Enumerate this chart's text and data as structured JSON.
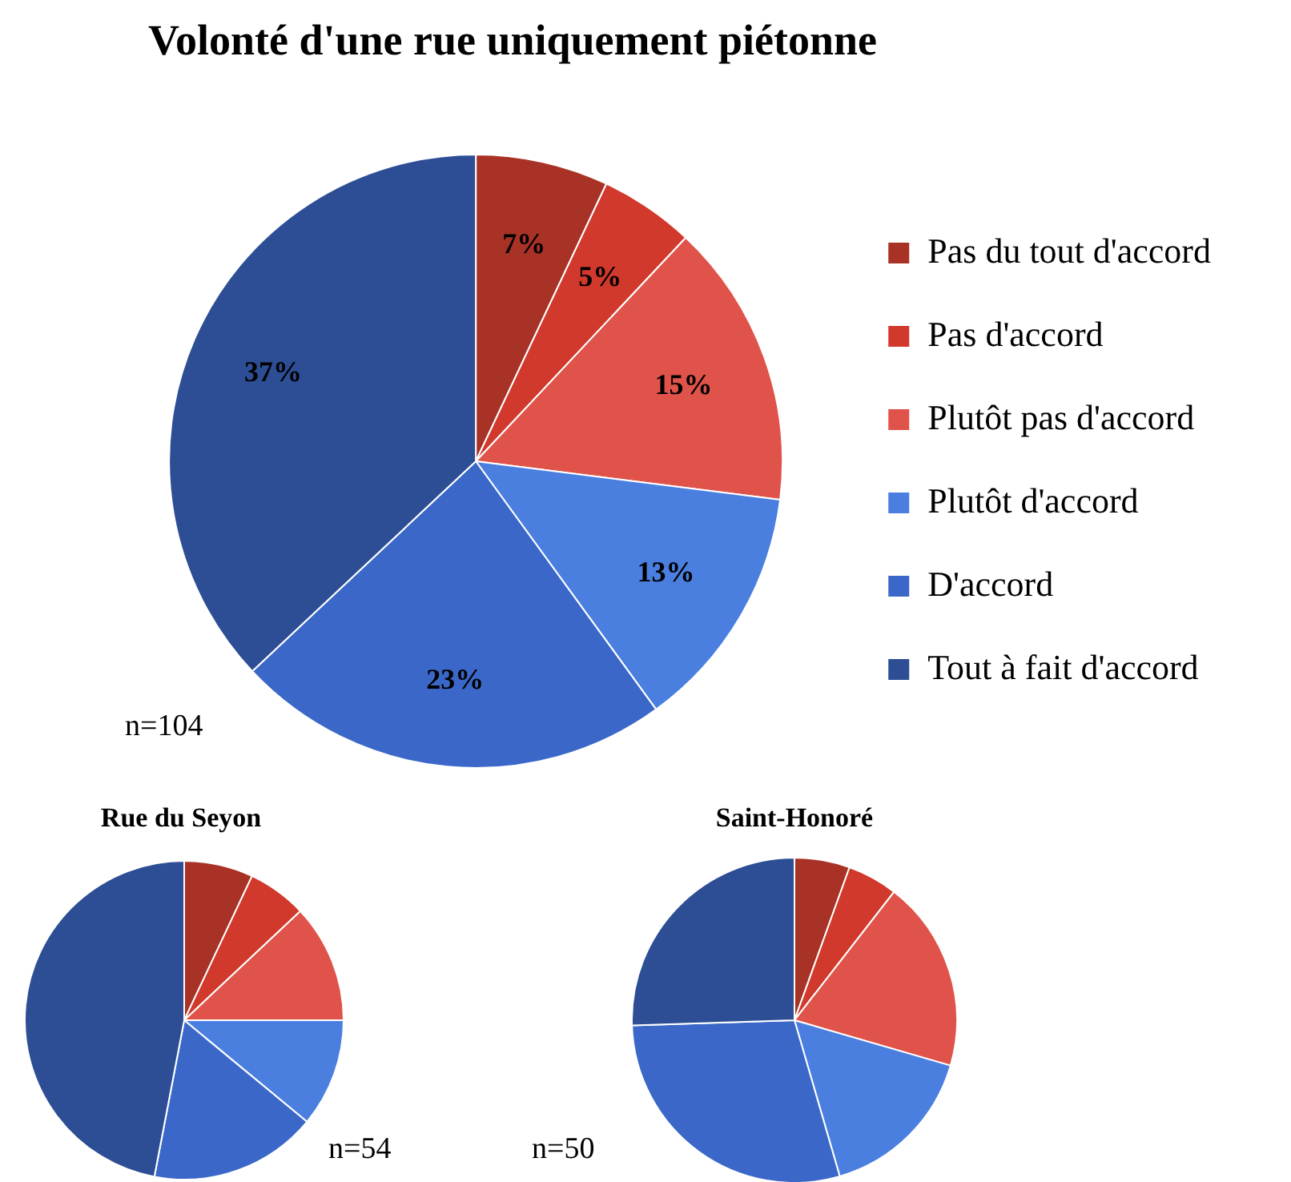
{
  "chart_data": [
    {
      "type": "pie",
      "title": "Volonté d'une rue uniquement piétonne",
      "categories": [
        "Pas du tout d'accord",
        "Pas d'accord",
        "Plutôt pas d'accord",
        "Plutôt d'accord",
        "D'accord",
        "Tout à fait d'accord"
      ],
      "values": [
        7,
        5,
        15,
        13,
        23,
        37
      ],
      "value_labels": [
        "7%",
        "5%",
        "15%",
        "13%",
        "23%",
        "37%"
      ],
      "colors": [
        "#a93226",
        "#d0392b",
        "#e0534a",
        "#4a7fe0",
        "#3b68c8",
        "#2d4e95"
      ],
      "legend": "right",
      "annotations": [
        "n=104"
      ]
    },
    {
      "type": "pie",
      "title": "Rue du Seyon",
      "categories": [
        null,
        null,
        null,
        null,
        null,
        null
      ],
      "values": [
        7,
        6,
        12,
        11,
        17,
        47
      ],
      "colors": [
        "#a93226",
        "#d0392b",
        "#e0534a",
        "#4a7fe0",
        "#3b68c8",
        "#2d4e95"
      ],
      "annotations": [
        "n=54"
      ]
    },
    {
      "type": "pie",
      "title": "Saint-Honoré",
      "categories": [
        null,
        null,
        null,
        null,
        null,
        null
      ],
      "values": [
        5.5,
        5,
        19,
        16,
        29,
        25.5
      ],
      "colors": [
        "#a93226",
        "#d0392b",
        "#e0534a",
        "#4a7fe0",
        "#3b68c8",
        "#2d4e95"
      ],
      "annotations": [
        "n=50"
      ]
    }
  ]
}
